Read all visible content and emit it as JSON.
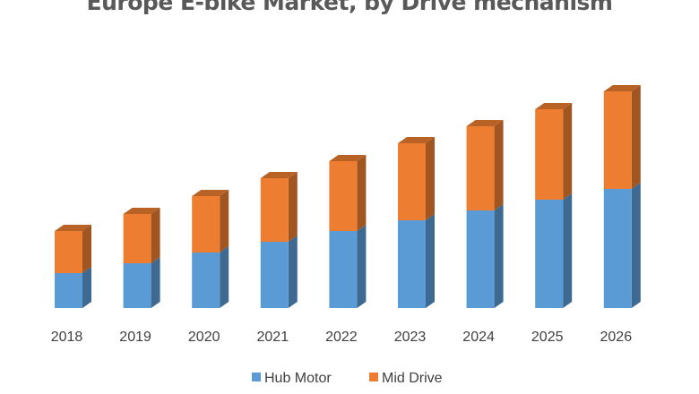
{
  "chart_data": {
    "type": "bar",
    "stacked": true,
    "style": "3d-column",
    "title": "Europe E-bike Market, by Drive mechanism",
    "xlabel": "",
    "ylabel": "",
    "categories": [
      "2018",
      "2019",
      "2020",
      "2021",
      "2022",
      "2023",
      "2024",
      "2025",
      "2026"
    ],
    "series": [
      {
        "name": "Hub Motor",
        "color": "#5B9BD5",
        "values": [
          39,
          50,
          62,
          74,
          86,
          98,
          109,
          121,
          133
        ]
      },
      {
        "name": "Mid Drive",
        "color": "#ED7D31",
        "values": [
          47,
          55,
          63,
          71,
          78,
          86,
          94,
          101,
          109
        ]
      }
    ],
    "ylim": [
      0,
      250
    ],
    "y_axis_visible": false,
    "grid": false,
    "legend": "bottom"
  }
}
